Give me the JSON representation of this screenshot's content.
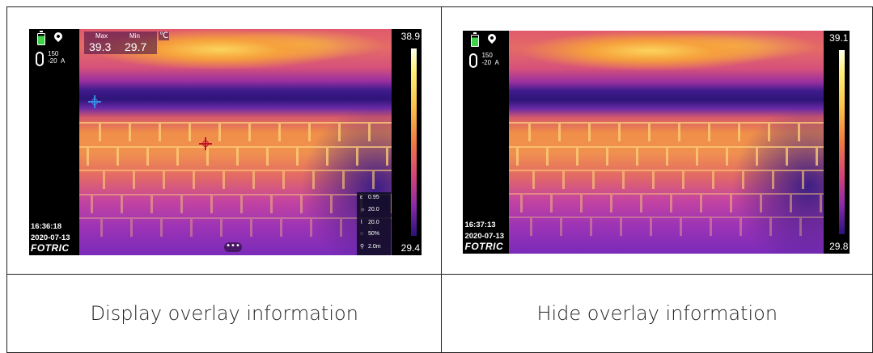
{
  "captions": {
    "left": "Display overlay information",
    "right": "Hide overlay information"
  },
  "left_image": {
    "min_max_header": {
      "max_label": "Max",
      "min_label": "Min",
      "max_value": "39.3",
      "min_value": "29.7",
      "unit": "℃"
    },
    "range": {
      "high": "150",
      "low": "-20",
      "mode": "A"
    },
    "scale": {
      "max": "38.9",
      "min": "29.4"
    },
    "time": "16:36:18",
    "date": "2020-07-13",
    "logo": "FOTRIC",
    "params": [
      {
        "icon": "emissivity-icon",
        "glyph": "ε",
        "value": "0.95"
      },
      {
        "icon": "reflected-temp-icon",
        "glyph": "☼",
        "value": "20.0"
      },
      {
        "icon": "ambient-temp-icon",
        "glyph": "⌇",
        "value": "20.0"
      },
      {
        "icon": "humidity-icon",
        "glyph": "◌",
        "value": "50%"
      },
      {
        "icon": "distance-icon",
        "glyph": "⚲",
        "value": "2.0m"
      }
    ],
    "more_glyph": "•••"
  },
  "right_image": {
    "range": {
      "high": "150",
      "low": "-20",
      "mode": "A"
    },
    "scale": {
      "max": "39.1",
      "min": "29.8"
    },
    "time": "16:37:13",
    "date": "2020-07-13",
    "logo": "FOTRIC"
  }
}
